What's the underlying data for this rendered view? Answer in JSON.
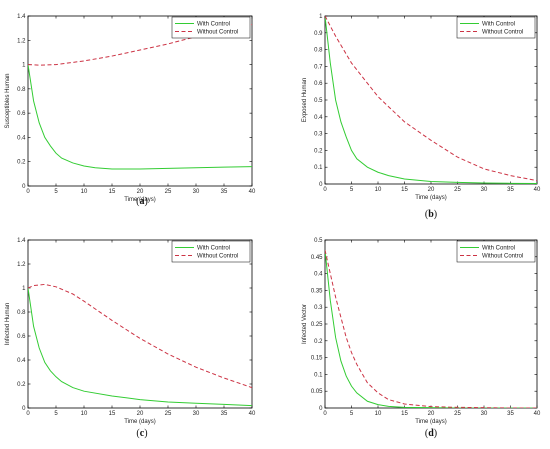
{
  "chart_data": [
    {
      "type": "line",
      "caption_open": "(",
      "caption_letter": "a",
      "caption_close": ")",
      "xlabel": "Time (days)",
      "ylabel": "Susceptibles Human",
      "xlim": [
        0,
        40
      ],
      "ylim": [
        0,
        1.4
      ],
      "xticks": [
        0,
        5,
        10,
        15,
        20,
        25,
        30,
        35,
        40
      ],
      "yticks": [
        0,
        0.2,
        0.4,
        0.6,
        0.8,
        1,
        1.2,
        1.4
      ],
      "legend": "top-right",
      "series": [
        {
          "name": "With Control",
          "color": "#33cc33",
          "dash": "solid",
          "x": [
            0,
            1,
            2,
            3,
            4,
            5,
            6,
            8,
            10,
            12,
            15,
            20,
            25,
            30,
            35,
            40
          ],
          "y": [
            1.0,
            0.7,
            0.52,
            0.4,
            0.33,
            0.27,
            0.23,
            0.19,
            0.165,
            0.15,
            0.14,
            0.14,
            0.145,
            0.15,
            0.155,
            0.16
          ]
        },
        {
          "name": "Without Control",
          "color": "#cc3344",
          "dash": "dashed",
          "x": [
            0,
            2,
            5,
            10,
            15,
            20,
            25,
            30,
            35,
            40
          ],
          "y": [
            1.0,
            0.995,
            1.0,
            1.03,
            1.07,
            1.12,
            1.17,
            1.23,
            1.28,
            1.33
          ]
        }
      ]
    },
    {
      "type": "line",
      "caption_open": "(",
      "caption_letter": "b",
      "caption_close": ")",
      "xlabel": "Time (days)",
      "ylabel": "Exposed Human",
      "xlim": [
        0,
        40
      ],
      "ylim": [
        0,
        1
      ],
      "xticks": [
        0,
        5,
        10,
        15,
        20,
        25,
        30,
        35,
        40
      ],
      "yticks": [
        0,
        0.1,
        0.2,
        0.3,
        0.4,
        0.5,
        0.6,
        0.7,
        0.8,
        0.9,
        1
      ],
      "legend": "top-right",
      "series": [
        {
          "name": "With Control",
          "color": "#33cc33",
          "dash": "solid",
          "x": [
            0,
            1,
            2,
            3,
            4,
            5,
            6,
            8,
            10,
            12,
            15,
            20,
            25,
            30,
            35,
            40
          ],
          "y": [
            1.0,
            0.72,
            0.5,
            0.37,
            0.28,
            0.2,
            0.15,
            0.1,
            0.07,
            0.05,
            0.03,
            0.015,
            0.01,
            0.006,
            0.004,
            0.003
          ]
        },
        {
          "name": "Without Control",
          "color": "#cc3344",
          "dash": "dashed",
          "x": [
            0,
            2,
            5,
            8,
            10,
            15,
            20,
            25,
            30,
            35,
            40
          ],
          "y": [
            1.0,
            0.88,
            0.72,
            0.6,
            0.52,
            0.37,
            0.26,
            0.16,
            0.09,
            0.05,
            0.02
          ]
        }
      ]
    },
    {
      "type": "line",
      "caption_open": "(",
      "caption_letter": "c",
      "caption_close": ")",
      "xlabel": "Time (days)",
      "ylabel": "Infected Human",
      "xlim": [
        0,
        40
      ],
      "ylim": [
        0,
        1.4
      ],
      "xticks": [
        0,
        5,
        10,
        15,
        20,
        25,
        30,
        35,
        40
      ],
      "yticks": [
        0,
        0.2,
        0.4,
        0.6,
        0.8,
        1,
        1.2,
        1.4
      ],
      "legend": "top-right",
      "series": [
        {
          "name": "With Control",
          "color": "#33cc33",
          "dash": "solid",
          "x": [
            0,
            1,
            2,
            3,
            4,
            5,
            6,
            8,
            10,
            15,
            20,
            25,
            30,
            35,
            40
          ],
          "y": [
            1.0,
            0.68,
            0.5,
            0.38,
            0.31,
            0.26,
            0.22,
            0.17,
            0.14,
            0.1,
            0.07,
            0.05,
            0.04,
            0.03,
            0.02
          ]
        },
        {
          "name": "Without Control",
          "color": "#cc3344",
          "dash": "dashed",
          "x": [
            0,
            1,
            3,
            5,
            8,
            10,
            15,
            20,
            25,
            30,
            35,
            40
          ],
          "y": [
            1.0,
            1.02,
            1.03,
            1.01,
            0.95,
            0.89,
            0.73,
            0.58,
            0.45,
            0.34,
            0.25,
            0.17
          ]
        }
      ]
    },
    {
      "type": "line",
      "caption_open": "(",
      "caption_letter": "d",
      "caption_close": ")",
      "xlabel": "Time (days)",
      "ylabel": "Infected Vector",
      "xlim": [
        0,
        40
      ],
      "ylim": [
        0,
        0.5
      ],
      "xticks": [
        0,
        5,
        10,
        15,
        20,
        25,
        30,
        35,
        40
      ],
      "yticks": [
        0,
        0.05,
        0.1,
        0.15,
        0.2,
        0.25,
        0.3,
        0.35,
        0.4,
        0.45,
        0.5
      ],
      "legend": "top-right",
      "series": [
        {
          "name": "With Control",
          "color": "#33cc33",
          "dash": "solid",
          "x": [
            0,
            1,
            2,
            3,
            4,
            5,
            6,
            8,
            10,
            12,
            15,
            20,
            25,
            30,
            35,
            40
          ],
          "y": [
            0.47,
            0.32,
            0.21,
            0.14,
            0.095,
            0.065,
            0.045,
            0.02,
            0.01,
            0.005,
            0.002,
            0.001,
            0.0,
            0.0,
            0.0,
            0.0
          ]
        },
        {
          "name": "Without Control",
          "color": "#cc3344",
          "dash": "dashed",
          "x": [
            0,
            1,
            2,
            3,
            4,
            5,
            6,
            8,
            10,
            12,
            15,
            20,
            25,
            30,
            35,
            40
          ],
          "y": [
            0.47,
            0.4,
            0.33,
            0.27,
            0.21,
            0.165,
            0.13,
            0.075,
            0.045,
            0.025,
            0.012,
            0.004,
            0.002,
            0.001,
            0.0,
            0.0
          ]
        }
      ]
    }
  ]
}
